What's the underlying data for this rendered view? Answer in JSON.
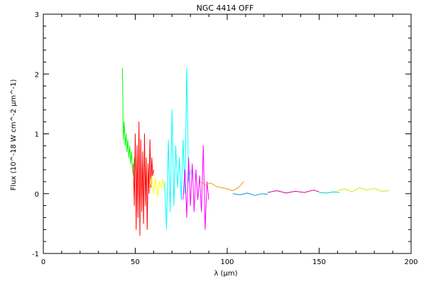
{
  "chart_data": {
    "type": "line",
    "title": "NGC 4414 OFF",
    "xlabel": "λ (μm)",
    "ylabel": "Flux (10^-18 W cm^-2 μm^-1)",
    "xlim": [
      0,
      200
    ],
    "ylim": [
      -1,
      3
    ],
    "xticks": [
      0,
      50,
      100,
      150,
      200
    ],
    "yticks": [
      -1,
      0,
      1,
      2,
      3
    ],
    "grid": false,
    "series": [
      {
        "color": "#00ff00",
        "x": [
          43.0,
          43.5,
          44.0,
          44.5,
          45.0,
          45.5,
          46.0,
          46.5,
          47.0,
          47.5,
          48.0,
          48.5,
          49.0,
          49.5,
          50.0
        ],
        "y": [
          2.1,
          0.9,
          1.2,
          0.8,
          1.0,
          0.7,
          0.9,
          0.6,
          0.8,
          0.5,
          0.7,
          0.4,
          0.3,
          0.6,
          0.5
        ]
      },
      {
        "color": "#ff0000",
        "x": [
          49.0,
          49.5,
          50.0,
          50.5,
          51.0,
          51.5,
          52.0,
          52.5,
          53.0,
          53.5,
          54.0,
          54.5,
          55.0,
          55.5,
          56.0,
          56.5,
          57.0,
          57.5,
          58.0,
          58.5,
          59.0,
          59.5,
          60.0
        ],
        "y": [
          0.5,
          -0.2,
          1.0,
          -0.6,
          0.8,
          -0.4,
          1.2,
          -0.7,
          0.9,
          -0.3,
          0.7,
          -0.5,
          1.0,
          -0.2,
          0.6,
          -0.6,
          0.5,
          0.0,
          0.9,
          0.1,
          0.6,
          0.3,
          0.4
        ]
      },
      {
        "color": "#ffff00",
        "x": [
          58.0,
          59.0,
          60.0,
          61.0,
          62.0,
          63.0,
          64.0,
          65.0,
          66.0
        ],
        "y": [
          0.1,
          0.3,
          0.0,
          0.25,
          -0.05,
          0.2,
          0.1,
          0.25,
          0.05
        ]
      },
      {
        "color": "#00ffff",
        "x": [
          66.0,
          67.0,
          68.0,
          69.0,
          70.0,
          71.0,
          72.0,
          73.0,
          74.0,
          75.0,
          76.0,
          77.0,
          78.0,
          79.0,
          80.0
        ],
        "y": [
          0.2,
          -0.6,
          0.9,
          -0.3,
          1.4,
          -0.2,
          0.8,
          0.1,
          0.6,
          -0.1,
          0.9,
          0.0,
          2.1,
          0.2,
          0.4
        ]
      },
      {
        "color": "#ff00ff",
        "x": [
          76.0,
          77.0,
          78.0,
          79.0,
          80.0,
          81.0,
          82.0,
          83.0,
          84.0,
          85.0,
          86.0,
          87.0,
          88.0,
          89.0,
          90.0
        ],
        "y": [
          -0.1,
          0.4,
          -0.4,
          0.6,
          -0.2,
          0.5,
          -0.3,
          0.4,
          -0.1,
          0.3,
          -0.3,
          0.8,
          -0.6,
          0.2,
          -0.1
        ]
      },
      {
        "color": "#ff9900",
        "x": [
          85.0,
          88.0,
          91.0,
          94.0,
          97.0,
          100.0,
          103.0,
          106.0,
          109.0
        ],
        "y": [
          0.2,
          0.15,
          0.18,
          0.12,
          0.1,
          0.08,
          0.05,
          0.1,
          0.2
        ]
      },
      {
        "color": "#0099cc",
        "x": [
          103.0,
          107.0,
          111.0,
          115.0,
          119.0,
          122.0
        ],
        "y": [
          0.0,
          -0.02,
          0.01,
          -0.03,
          0.0,
          -0.01
        ]
      },
      {
        "color": "#cc0099",
        "x": [
          122.0,
          127.0,
          132.0,
          137.0,
          142.0,
          147.0,
          150.0
        ],
        "y": [
          0.02,
          0.05,
          0.01,
          0.04,
          0.02,
          0.06,
          0.03
        ]
      },
      {
        "color": "#00cccc",
        "x": [
          150.0,
          154.0,
          158.0,
          161.0
        ],
        "y": [
          0.02,
          0.01,
          0.03,
          0.02
        ]
      },
      {
        "color": "#ccee00",
        "x": [
          160.0,
          164.0,
          168.0,
          172.0,
          176.0,
          180.0,
          184.0,
          188.0
        ],
        "y": [
          0.05,
          0.08,
          0.03,
          0.1,
          0.06,
          0.09,
          0.04,
          0.05
        ]
      }
    ]
  }
}
